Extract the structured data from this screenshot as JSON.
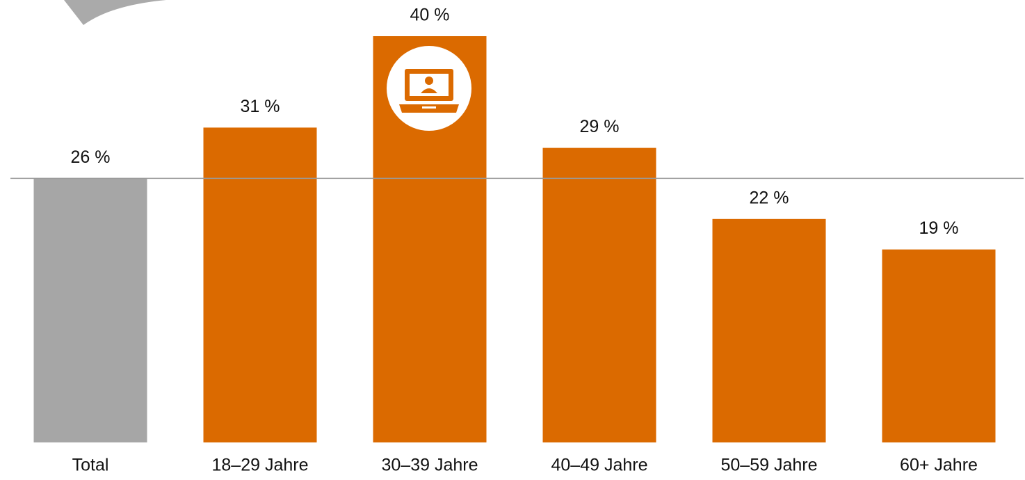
{
  "chart_data": {
    "type": "bar",
    "categories": [
      "Total",
      "18–29 Jahre",
      "30–39 Jahre",
      "40–49 Jahre",
      "50–59 Jahre",
      "60+ Jahre"
    ],
    "values": [
      26,
      31,
      40,
      29,
      22,
      19
    ],
    "value_labels": [
      "26 %",
      "31 %",
      "40 %",
      "29 %",
      "22 %",
      "19 %"
    ],
    "colors": [
      "#a6a6a6",
      "#db6a00",
      "#db6a00",
      "#db6a00",
      "#db6a00",
      "#db6a00"
    ],
    "ylim": [
      0,
      40
    ]
  }
}
